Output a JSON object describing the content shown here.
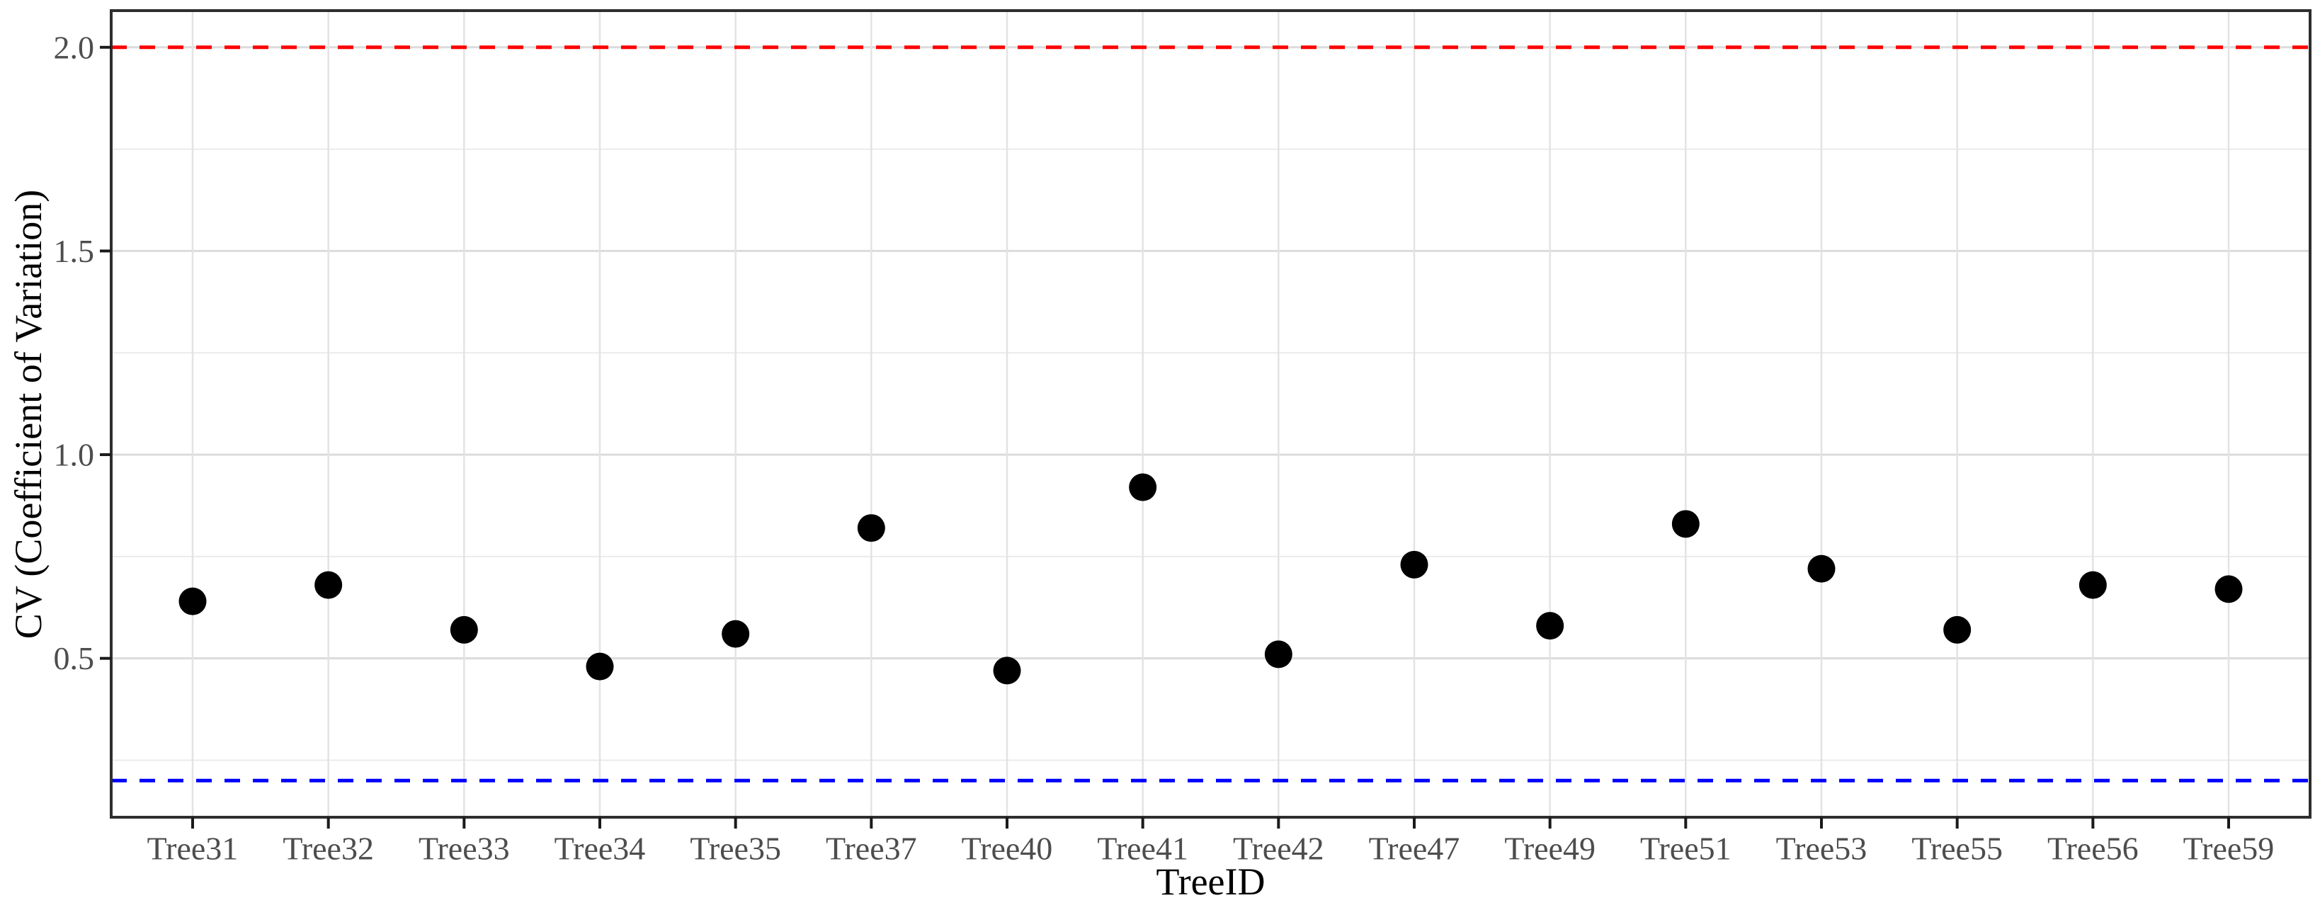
{
  "page": {
    "background": "#FFFFFF"
  },
  "chart_data": {
    "type": "scatter",
    "title": "",
    "xlabel": "TreeID",
    "ylabel": "CV (Coefficient of Variation)",
    "categories": [
      "Tree31",
      "Tree32",
      "Tree33",
      "Tree34",
      "Tree35",
      "Tree37",
      "Tree40",
      "Tree41",
      "Tree42",
      "Tree47",
      "Tree49",
      "Tree51",
      "Tree53",
      "Tree55",
      "Tree56",
      "Tree59"
    ],
    "values": [
      0.64,
      0.68,
      0.57,
      0.48,
      0.56,
      0.82,
      0.47,
      0.92,
      0.51,
      0.73,
      0.58,
      0.83,
      0.72,
      0.57,
      0.68,
      0.67
    ],
    "ylim": [
      0.11,
      2.09
    ],
    "y_ticks": [
      0.5,
      1.0,
      1.5,
      2.0
    ],
    "y_tick_labels": [
      "0.5",
      "1.0",
      "1.5",
      "2.0"
    ],
    "y_minor_gridlines": [
      0.25,
      0.75,
      1.25,
      1.75
    ],
    "grid": true,
    "legend_position": "none",
    "point_color": "#000000",
    "reference_lines": [
      {
        "name": "upper-threshold",
        "value": 2.0,
        "color": "#FF0000",
        "style": "dashed"
      },
      {
        "name": "lower-threshold",
        "value": 0.2,
        "color": "#0000FF",
        "style": "dashed"
      }
    ]
  },
  "style": {
    "tick_label_color": "#4D4D4D",
    "axis_title_color": "#000000",
    "panel_border_color": "#2E2E2E",
    "tick_color": "#1A1A1A",
    "grid_major_color": "#DBDBDB",
    "grid_minor_color": "#EBEBEB",
    "grid_vertical_color": "#E3E3E3"
  }
}
